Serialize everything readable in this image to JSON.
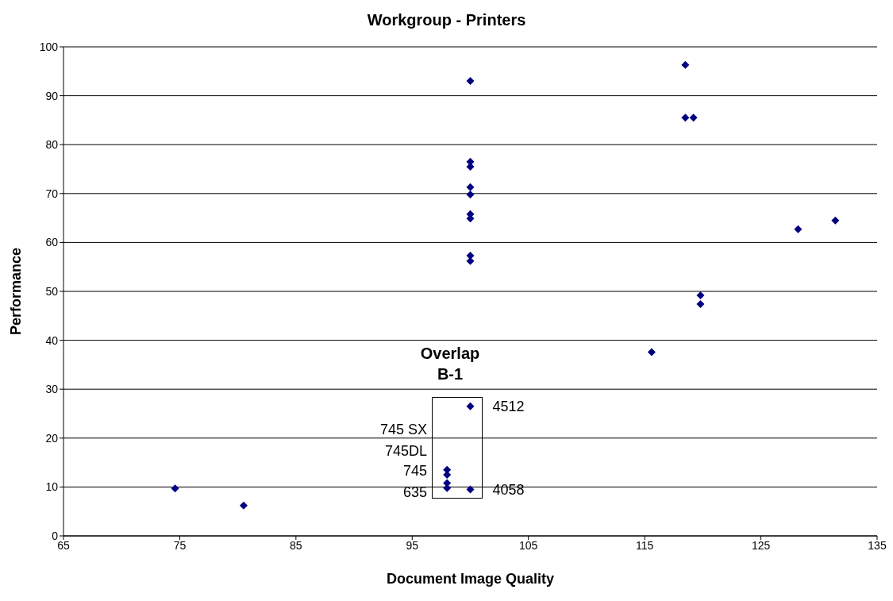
{
  "chart_data": {
    "type": "scatter",
    "title": "Workgroup - Printers",
    "xlabel": "Document Image Quality",
    "ylabel": "Performance",
    "x": [
      74.6,
      80.5,
      98,
      98,
      98,
      98,
      100,
      100,
      100,
      100,
      100,
      100,
      100,
      100,
      100,
      100,
      100,
      118.5,
      118.5,
      119.2,
      119.8,
      119.8,
      115.6,
      128.2,
      131.4
    ],
    "series": [
      {
        "color": "#000080",
        "values": [
          9.7,
          6.2,
          13.5,
          12.5,
          10.8,
          9.8,
          93,
          76.5,
          75.5,
          71.3,
          69.8,
          65.8,
          64.9,
          57.3,
          56.2,
          26.5,
          9.5,
          96.3,
          85.5,
          85.5,
          49.2,
          47.4,
          37.6,
          62.7,
          64.5
        ]
      }
    ],
    "xlim": [
      65,
      135
    ],
    "xticks": [
      65,
      75,
      85,
      95,
      105,
      115,
      125,
      135
    ],
    "ylim": [
      0,
      100
    ],
    "yticks": [
      0,
      10,
      20,
      30,
      40,
      50,
      60,
      70,
      80,
      90,
      100
    ],
    "grid": "y",
    "marker": "diamond",
    "annotations": [
      "Overlap B-1",
      "745 SX",
      "745DL",
      "745",
      "635",
      {
        "text": "4512",
        "x": 100,
        "y": 26.5
      },
      {
        "text": "4058",
        "x": 100,
        "y": 9.5
      }
    ]
  }
}
